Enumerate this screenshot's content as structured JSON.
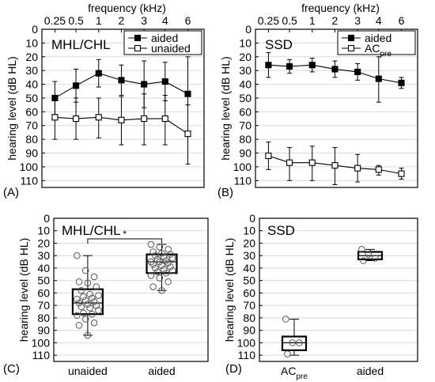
{
  "chart_data": [
    {
      "panel": "(A)",
      "type": "line",
      "title": "MHL/CHL",
      "xlabel": "frequency (kHz)",
      "ylabel": "hearing level (dB HL)",
      "x_ticks": [
        "0.25",
        "0.5",
        "1",
        "2",
        "3",
        "4",
        "6"
      ],
      "ylim": [
        0,
        115
      ],
      "y_ticks": [
        "0",
        "10",
        "20",
        "30",
        "40",
        "50",
        "60",
        "70",
        "80",
        "90",
        "100",
        "110"
      ],
      "y_inverted": true,
      "grid": true,
      "legend": "top-right",
      "series": [
        {
          "name": "aided",
          "marker": "filled-square",
          "values": [
            50,
            41,
            32,
            37,
            40,
            38,
            47
          ],
          "err_low": [
            38,
            29,
            22,
            26,
            23,
            24,
            20
          ],
          "err_high": [
            62,
            53,
            42,
            48,
            57,
            52,
            75
          ]
        },
        {
          "name": "unaided",
          "marker": "open-square",
          "values": [
            64,
            65,
            64,
            66,
            65,
            65,
            76
          ],
          "err_low": [
            49,
            50,
            50,
            49,
            47,
            48,
            55
          ],
          "err_high": [
            80,
            80,
            79,
            84,
            84,
            84,
            98
          ]
        }
      ]
    },
    {
      "panel": "(B)",
      "type": "line",
      "title": "SSD",
      "xlabel": "frequency (kHz)",
      "ylabel": "hearing level (dB HL)",
      "x_ticks": [
        "0.25",
        "0.5",
        "1",
        "2",
        "3",
        "4",
        "6"
      ],
      "ylim": [
        0,
        115
      ],
      "y_ticks": [
        "0",
        "10",
        "20",
        "30",
        "40",
        "50",
        "60",
        "70",
        "80",
        "90",
        "100",
        "110"
      ],
      "y_inverted": true,
      "grid": true,
      "legend": "top-right",
      "series": [
        {
          "name": "aided",
          "marker": "filled-square",
          "values": [
            26,
            27,
            26,
            29,
            31,
            36,
            39
          ],
          "err_low": [
            17,
            22,
            21,
            23,
            25,
            20,
            35
          ],
          "err_high": [
            35,
            32,
            31,
            35,
            37,
            53,
            43
          ]
        },
        {
          "name": "AC",
          "name_sub": "pre",
          "marker": "open-square",
          "values": [
            92,
            97,
            97,
            99,
            101,
            102,
            105
          ],
          "err_low": [
            82,
            86,
            85,
            86,
            91,
            99,
            101
          ],
          "err_high": [
            102,
            110,
            110,
            113,
            111,
            106,
            109
          ]
        }
      ]
    },
    {
      "panel": "(C)",
      "type": "box",
      "title": "MHL/CHL",
      "ylabel": "hearing level (dB HL)",
      "categories": [
        "unaided",
        "aided"
      ],
      "ylim": [
        0,
        115
      ],
      "y_ticks": [
        "0",
        "10",
        "20",
        "30",
        "40",
        "50",
        "60",
        "70",
        "80",
        "90",
        "100",
        "110"
      ],
      "y_inverted": true,
      "grid": true,
      "significance": "*",
      "boxes": [
        {
          "min": 30,
          "q1": 57,
          "median": 68,
          "q3": 77,
          "max": 94,
          "points": [
            30,
            42,
            47,
            51,
            52,
            55,
            58,
            61,
            62,
            63,
            64,
            65,
            66,
            67,
            68,
            69,
            70,
            71,
            72,
            74,
            76,
            77,
            78,
            81,
            84,
            86,
            94
          ]
        },
        {
          "min": 21,
          "q1": 29,
          "median": 35,
          "q3": 44,
          "max": 58,
          "points": [
            21,
            23,
            25,
            27,
            28,
            29,
            30,
            31,
            32,
            33,
            34,
            35,
            35,
            36,
            37,
            38,
            39,
            40,
            41,
            42,
            43,
            44,
            46,
            48,
            51,
            55,
            58
          ]
        }
      ]
    },
    {
      "panel": "(D)",
      "type": "box",
      "title": "SSD",
      "ylabel": "hearing level (dB HL)",
      "categories": [
        {
          "text": "AC",
          "sub": "pre"
        },
        {
          "text": "aided"
        }
      ],
      "ylim": [
        0,
        115
      ],
      "y_ticks": [
        "0",
        "10",
        "20",
        "30",
        "40",
        "50",
        "60",
        "70",
        "80",
        "90",
        "100",
        "110"
      ],
      "y_inverted": true,
      "grid": true,
      "boxes": [
        {
          "min": 81,
          "q1": 95,
          "median": 100,
          "q3": 106,
          "max": 110,
          "points": [
            81,
            100,
            100,
            109
          ]
        },
        {
          "min": 25,
          "q1": 27,
          "median": 30,
          "q3": 33,
          "max": 34,
          "points": [
            25,
            29,
            32,
            34
          ]
        }
      ]
    }
  ]
}
